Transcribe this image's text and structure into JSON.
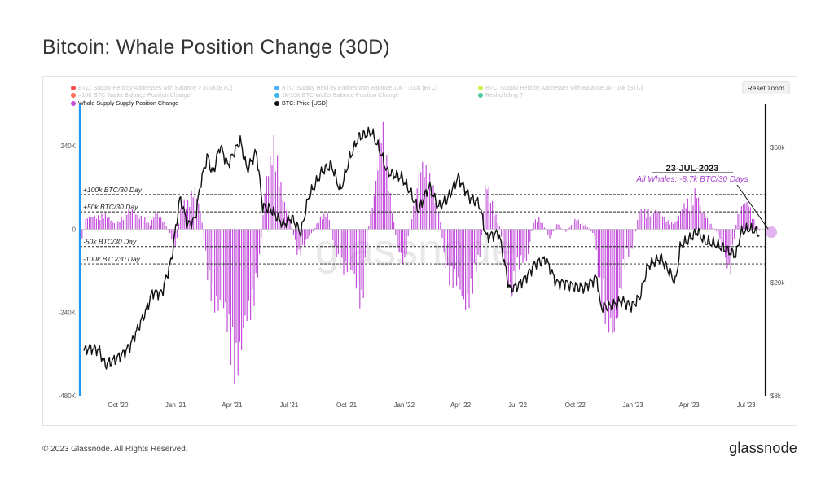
{
  "page": {
    "title": "Bitcoin: Whale Position Change (30D)",
    "copyright": "© 2023 Glassnode. All Rights Reserved.",
    "brand": "glassnode",
    "watermark": "glassnode"
  },
  "chart": {
    "reset_zoom": "Reset zoom",
    "legend": [
      {
        "label": "BTC: Supply Held by Addresses with Balance > 100k [BTC]",
        "color": "#ff2b2b",
        "active": false
      },
      {
        "label": "BTC: Supply Held by Entities with Balance 10k - 100k [BTC]",
        "color": "#2aa3ff",
        "active": false
      },
      {
        "label": "BTC: Supply Held by Addresses with Balance 1k - 10k [BTC]",
        "color": "#c6f02a",
        "active": false
      },
      {
        "label": ">10K BTC Wallet Balance Position Change",
        "color": "#ff5a3c",
        "active": false
      },
      {
        "label": "1k-10K BTC Wallet Balance Position Change",
        "color": "#19a6e8",
        "active": false
      },
      {
        "label": "Reshuffeling ?",
        "color": "#2ec48c",
        "active": false
      },
      {
        "label": "Whale Supply Supply Position Change",
        "color": "#c34fdb",
        "active": true
      },
      {
        "label": "BTC: Price [USD]",
        "color": "#111111",
        "active": true
      },
      {
        "label": "---",
        "color": "",
        "active": false
      }
    ],
    "annotation": {
      "date": "23-JUL-2023",
      "text": "All Whales: -8.7k BTC/30 Days"
    }
  },
  "chart_data": {
    "type": "bar",
    "colors": {
      "bars": "#c34fdb",
      "price": "#111111",
      "annotation": "#a43fce",
      "left_axis": "#2196f3"
    },
    "x_tick_labels": [
      "Oct '20",
      "Jan '21",
      "Apr '21",
      "Jul '21",
      "Oct '21",
      "Jan '22",
      "Apr '22",
      "Jul '22",
      "Oct '22",
      "Jan '23",
      "Apr '23",
      "Jul '23"
    ],
    "x_tick_dates": [
      "2020-10-01",
      "2021-01-01",
      "2021-04-01",
      "2021-07-01",
      "2021-10-01",
      "2022-01-01",
      "2022-04-01",
      "2022-07-01",
      "2022-10-01",
      "2023-01-01",
      "2023-04-01",
      "2023-07-01"
    ],
    "xlim": [
      "2020-08-01",
      "2023-08-01"
    ],
    "left_axis": {
      "ticks": [
        240000,
        0,
        -240000,
        -480000
      ],
      "tick_labels": [
        "240K",
        "0",
        "-240K",
        "-480K"
      ],
      "ylim": [
        -480000,
        360000
      ]
    },
    "right_axis": {
      "scale": "log",
      "ticks": [
        60000,
        20000,
        8000
      ],
      "tick_labels": [
        "$60k",
        "$20k",
        "$8k"
      ],
      "ylim": [
        8000,
        85000
      ]
    },
    "reference_lines": [
      {
        "value": 100000,
        "label": "+100k BTC/30 Day"
      },
      {
        "value": 50000,
        "label": "+50k BTC/30 Day"
      },
      {
        "value": -50000,
        "label": "-50k BTC/30 Day"
      },
      {
        "value": -100000,
        "label": "-100k BTC/30 Day"
      }
    ],
    "series": [
      {
        "name": "Whale Supply Supply Position Change",
        "type": "bar",
        "axis": "left",
        "points": [
          [
            "2020-08-01",
            -50000
          ],
          [
            "2020-08-10",
            30000
          ],
          [
            "2020-08-25",
            50000
          ],
          [
            "2020-09-10",
            40000
          ],
          [
            "2020-09-25",
            20000
          ],
          [
            "2020-10-10",
            45000
          ],
          [
            "2020-10-25",
            60000
          ],
          [
            "2020-11-10",
            40000
          ],
          [
            "2020-11-20",
            10000
          ],
          [
            "2020-12-01",
            60000
          ],
          [
            "2020-12-15",
            20000
          ],
          [
            "2021-01-01",
            -60000
          ],
          [
            "2021-01-10",
            110000
          ],
          [
            "2021-01-20",
            80000
          ],
          [
            "2021-02-01",
            120000
          ],
          [
            "2021-02-10",
            60000
          ],
          [
            "2021-02-20",
            -150000
          ],
          [
            "2021-03-01",
            -200000
          ],
          [
            "2021-03-15",
            -280000
          ],
          [
            "2021-04-01",
            -380000
          ],
          [
            "2021-04-15",
            -420000
          ],
          [
            "2021-05-01",
            -250000
          ],
          [
            "2021-05-15",
            -80000
          ],
          [
            "2021-05-25",
            200000
          ],
          [
            "2021-06-05",
            260000
          ],
          [
            "2021-06-15",
            150000
          ],
          [
            "2021-07-01",
            40000
          ],
          [
            "2021-07-15",
            -80000
          ],
          [
            "2021-08-01",
            -30000
          ],
          [
            "2021-08-15",
            20000
          ],
          [
            "2021-09-01",
            60000
          ],
          [
            "2021-09-10",
            -60000
          ],
          [
            "2021-09-25",
            -120000
          ],
          [
            "2021-10-10",
            -160000
          ],
          [
            "2021-10-25",
            -220000
          ],
          [
            "2021-11-05",
            20000
          ],
          [
            "2021-11-15",
            150000
          ],
          [
            "2021-11-25",
            300000
          ],
          [
            "2021-12-05",
            180000
          ],
          [
            "2021-12-20",
            -60000
          ],
          [
            "2022-01-01",
            -100000
          ],
          [
            "2022-01-15",
            80000
          ],
          [
            "2022-01-25",
            200000
          ],
          [
            "2022-02-05",
            160000
          ],
          [
            "2022-02-15",
            150000
          ],
          [
            "2022-02-25",
            60000
          ],
          [
            "2022-03-05",
            -80000
          ],
          [
            "2022-03-15",
            -160000
          ],
          [
            "2022-03-25",
            -200000
          ],
          [
            "2022-04-05",
            -230000
          ],
          [
            "2022-04-20",
            -180000
          ],
          [
            "2022-05-01",
            -100000
          ],
          [
            "2022-05-10",
            140000
          ],
          [
            "2022-05-20",
            80000
          ],
          [
            "2022-06-01",
            20000
          ],
          [
            "2022-06-10",
            -120000
          ],
          [
            "2022-06-20",
            -180000
          ],
          [
            "2022-07-01",
            -140000
          ],
          [
            "2022-07-15",
            -100000
          ],
          [
            "2022-07-25",
            20000
          ],
          [
            "2022-08-05",
            40000
          ],
          [
            "2022-08-20",
            -30000
          ],
          [
            "2022-09-01",
            20000
          ],
          [
            "2022-09-15",
            -10000
          ],
          [
            "2022-10-01",
            30000
          ],
          [
            "2022-10-15",
            20000
          ],
          [
            "2022-11-01",
            -20000
          ],
          [
            "2022-11-10",
            -220000
          ],
          [
            "2022-11-20",
            -360000
          ],
          [
            "2022-12-01",
            -300000
          ],
          [
            "2022-12-15",
            -150000
          ],
          [
            "2023-01-01",
            -50000
          ],
          [
            "2023-01-10",
            50000
          ],
          [
            "2023-01-25",
            70000
          ],
          [
            "2023-02-10",
            50000
          ],
          [
            "2023-02-25",
            30000
          ],
          [
            "2023-03-10",
            20000
          ],
          [
            "2023-03-20",
            60000
          ],
          [
            "2023-04-01",
            110000
          ],
          [
            "2023-04-10",
            130000
          ],
          [
            "2023-04-20",
            50000
          ],
          [
            "2023-05-01",
            30000
          ],
          [
            "2023-05-15",
            -10000
          ],
          [
            "2023-05-25",
            -60000
          ],
          [
            "2023-06-05",
            -160000
          ],
          [
            "2023-06-15",
            40000
          ],
          [
            "2023-06-25",
            70000
          ],
          [
            "2023-07-05",
            80000
          ],
          [
            "2023-07-15",
            20000
          ],
          [
            "2023-07-23",
            -8700
          ]
        ]
      },
      {
        "name": "BTC: Price [USD]",
        "type": "line",
        "axis": "right",
        "points": [
          [
            "2020-08-01",
            11300
          ],
          [
            "2020-08-15",
            11800
          ],
          [
            "2020-09-01",
            11600
          ],
          [
            "2020-09-10",
            10300
          ],
          [
            "2020-09-25",
            10700
          ],
          [
            "2020-10-10",
            11300
          ],
          [
            "2020-10-20",
            12000
          ],
          [
            "2020-11-01",
            13700
          ],
          [
            "2020-11-15",
            16000
          ],
          [
            "2020-11-25",
            18500
          ],
          [
            "2020-12-10",
            18400
          ],
          [
            "2020-12-25",
            24000
          ],
          [
            "2021-01-08",
            40000
          ],
          [
            "2021-01-20",
            32000
          ],
          [
            "2021-02-01",
            33500
          ],
          [
            "2021-02-10",
            45000
          ],
          [
            "2021-02-21",
            56000
          ],
          [
            "2021-03-01",
            48000
          ],
          [
            "2021-03-13",
            61000
          ],
          [
            "2021-03-25",
            52000
          ],
          [
            "2021-04-14",
            63500
          ],
          [
            "2021-04-25",
            50000
          ],
          [
            "2021-05-10",
            58000
          ],
          [
            "2021-05-20",
            37000
          ],
          [
            "2021-06-01",
            36500
          ],
          [
            "2021-06-22",
            32000
          ],
          [
            "2021-07-05",
            34000
          ],
          [
            "2021-07-20",
            30000
          ],
          [
            "2021-08-01",
            40000
          ],
          [
            "2021-08-23",
            49500
          ],
          [
            "2021-09-07",
            52000
          ],
          [
            "2021-09-21",
            42000
          ],
          [
            "2021-10-06",
            55000
          ],
          [
            "2021-10-20",
            65000
          ],
          [
            "2021-11-10",
            68000
          ],
          [
            "2021-11-25",
            57000
          ],
          [
            "2021-12-05",
            49000
          ],
          [
            "2021-12-28",
            47000
          ],
          [
            "2022-01-10",
            42000
          ],
          [
            "2022-01-24",
            36000
          ],
          [
            "2022-02-10",
            44000
          ],
          [
            "2022-02-24",
            37000
          ],
          [
            "2022-03-10",
            39000
          ],
          [
            "2022-03-28",
            47000
          ],
          [
            "2022-04-15",
            40000
          ],
          [
            "2022-05-01",
            38000
          ],
          [
            "2022-05-12",
            29000
          ],
          [
            "2022-06-01",
            30000
          ],
          [
            "2022-06-18",
            19000
          ],
          [
            "2022-07-01",
            19500
          ],
          [
            "2022-07-15",
            21000
          ],
          [
            "2022-07-30",
            23500
          ],
          [
            "2022-08-15",
            24200
          ],
          [
            "2022-09-01",
            20000
          ],
          [
            "2022-09-15",
            20000
          ],
          [
            "2022-09-30",
            19400
          ],
          [
            "2022-10-15",
            19200
          ],
          [
            "2022-11-05",
            21000
          ],
          [
            "2022-11-10",
            16500
          ],
          [
            "2022-11-25",
            16500
          ],
          [
            "2022-12-15",
            17300
          ],
          [
            "2022-12-30",
            16500
          ],
          [
            "2023-01-12",
            17800
          ],
          [
            "2023-01-25",
            23000
          ],
          [
            "2023-02-15",
            24500
          ],
          [
            "2023-03-10",
            20000
          ],
          [
            "2023-03-18",
            27000
          ],
          [
            "2023-04-01",
            28500
          ],
          [
            "2023-04-14",
            30400
          ],
          [
            "2023-04-25",
            28000
          ],
          [
            "2023-05-10",
            27500
          ],
          [
            "2023-05-25",
            26500
          ],
          [
            "2023-06-15",
            25000
          ],
          [
            "2023-06-22",
            30000
          ],
          [
            "2023-07-05",
            31000
          ],
          [
            "2023-07-15",
            30500
          ],
          [
            "2023-07-23",
            29500
          ]
        ]
      }
    ]
  }
}
